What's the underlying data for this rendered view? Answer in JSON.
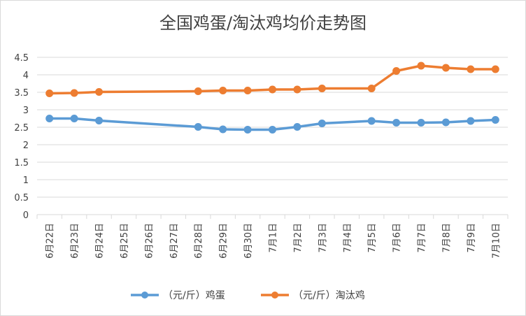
{
  "chart_data": {
    "type": "line",
    "title": "全国鸡蛋/淘汰鸡均价走势图",
    "xlabel": "",
    "ylabel": "",
    "categories": [
      "6月22日",
      "6月23日",
      "6月24日",
      "6月25日",
      "6月26日",
      "6月27日",
      "6月28日",
      "6月29日",
      "6月30日",
      "7月1日",
      "7月2日",
      "7月3日",
      "7月4日",
      "7月5日",
      "7月6日",
      "7月7日",
      "7月8日",
      "7月9日",
      "7月10日"
    ],
    "ylim": [
      0,
      4.5
    ],
    "yticks": [
      "0",
      "0.5",
      "1",
      "1.5",
      "2",
      "2.5",
      "3",
      "3.5",
      "4",
      "4.5"
    ],
    "grid": true,
    "legend_position": "bottom",
    "series": [
      {
        "name": "（元/斤）鸡蛋",
        "color": "#5B9BD5",
        "values": [
          2.75,
          2.75,
          2.69,
          null,
          null,
          null,
          2.51,
          2.44,
          2.43,
          2.43,
          2.51,
          2.61,
          null,
          2.68,
          2.63,
          2.63,
          2.64,
          2.68,
          2.71
        ]
      },
      {
        "name": "（元/斤）淘汰鸡",
        "color": "#ED7D31",
        "values": [
          3.47,
          3.48,
          3.51,
          null,
          null,
          null,
          3.53,
          3.55,
          3.55,
          3.58,
          3.58,
          3.61,
          null,
          3.61,
          4.11,
          4.26,
          4.2,
          4.16,
          4.16
        ]
      }
    ]
  }
}
